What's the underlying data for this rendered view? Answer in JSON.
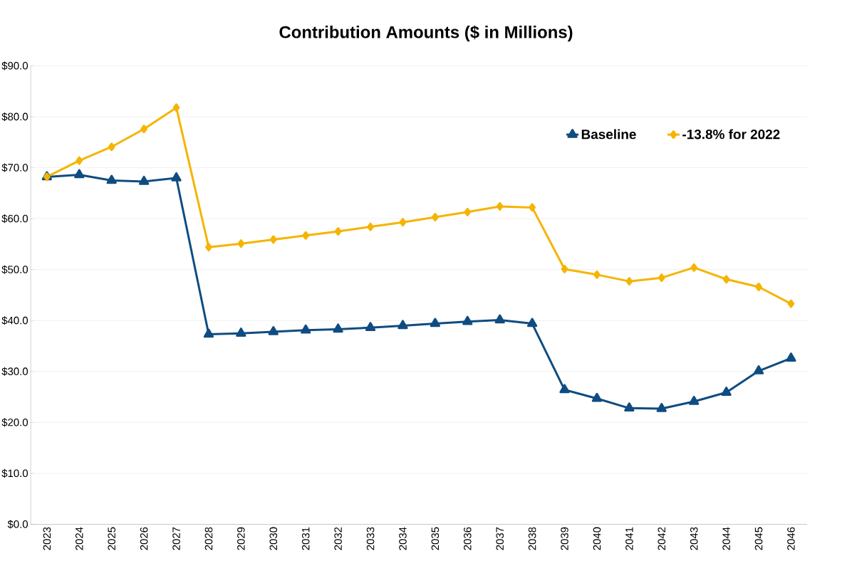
{
  "chart_data": {
    "type": "line",
    "title": "Contribution Amounts  ($ in Millions)",
    "categories": [
      "2023",
      "2024",
      "2025",
      "2026",
      "2027",
      "2028",
      "2029",
      "2030",
      "2031",
      "2032",
      "2033",
      "2034",
      "2035",
      "2036",
      "2037",
      "2038",
      "2039",
      "2040",
      "2041",
      "2042",
      "2043",
      "2044",
      "2045",
      "2046"
    ],
    "series": [
      {
        "name": "Baseline",
        "color": "#0f4c81",
        "marker": "triangle",
        "values": [
          68.2,
          68.6,
          67.5,
          67.3,
          68.0,
          37.3,
          37.5,
          37.8,
          38.1,
          38.3,
          38.6,
          39.0,
          39.4,
          39.8,
          40.1,
          39.4,
          26.4,
          24.7,
          22.8,
          22.7,
          24.1,
          25.9,
          30.1,
          32.6
        ]
      },
      {
        "name": "-13.8%  for 2022",
        "color": "#f5b400",
        "marker": "diamond",
        "values": [
          68.2,
          71.4,
          74.1,
          77.6,
          81.8,
          54.4,
          55.1,
          55.9,
          56.7,
          57.5,
          58.4,
          59.3,
          60.3,
          61.3,
          62.4,
          62.2,
          50.1,
          49.0,
          47.7,
          48.4,
          50.4,
          48.1,
          46.6,
          43.3
        ]
      }
    ],
    "ylim": [
      0,
      90
    ],
    "yticks": [
      {
        "value": 0,
        "label": "$0.0"
      },
      {
        "value": 10,
        "label": "$10.0"
      },
      {
        "value": 20,
        "label": "$20.0"
      },
      {
        "value": 30,
        "label": "$30.0"
      },
      {
        "value": 40,
        "label": "$40.0"
      },
      {
        "value": 50,
        "label": "$50.0"
      },
      {
        "value": 60,
        "label": "$60.0"
      },
      {
        "value": 70,
        "label": "$70.0"
      },
      {
        "value": 80,
        "label": "$80.0"
      },
      {
        "value": 90,
        "label": "$90.0"
      }
    ],
    "grid": "y",
    "legend": "top right",
    "line_style": "solid"
  }
}
